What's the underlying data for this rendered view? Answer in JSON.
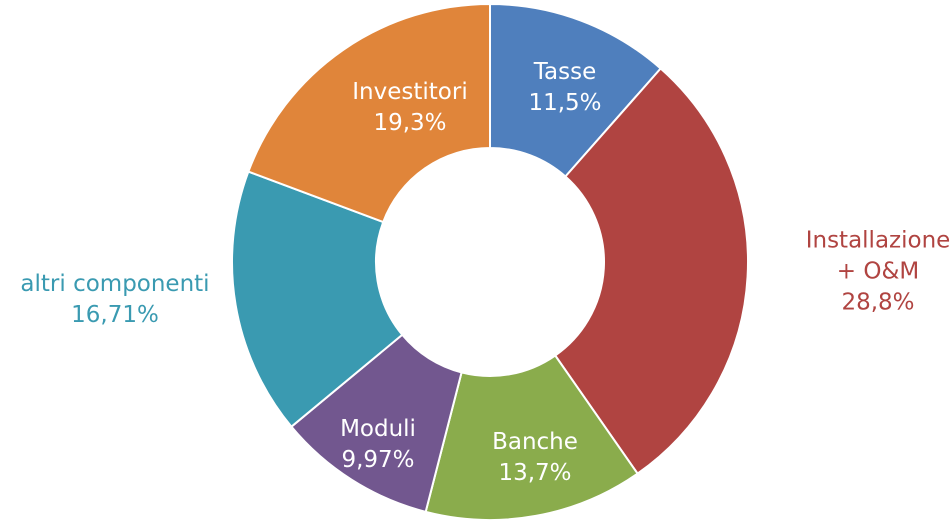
{
  "chart_data": {
    "type": "donut",
    "categories": [
      "Tasse",
      "Installazione + O&M",
      "Banche",
      "Moduli",
      "altri componenti",
      "Investitori"
    ],
    "values": [
      11.5,
      28.8,
      13.7,
      9.97,
      16.71,
      19.3
    ],
    "value_labels": [
      "11,5%",
      "28,8%",
      "13,7%",
      "9,97%",
      "16,71%",
      "19,3%"
    ],
    "colors": [
      "#4f7fbd",
      "#b04441",
      "#8aac4c",
      "#72578f",
      "#3a9ab1",
      "#e0853a"
    ]
  }
}
